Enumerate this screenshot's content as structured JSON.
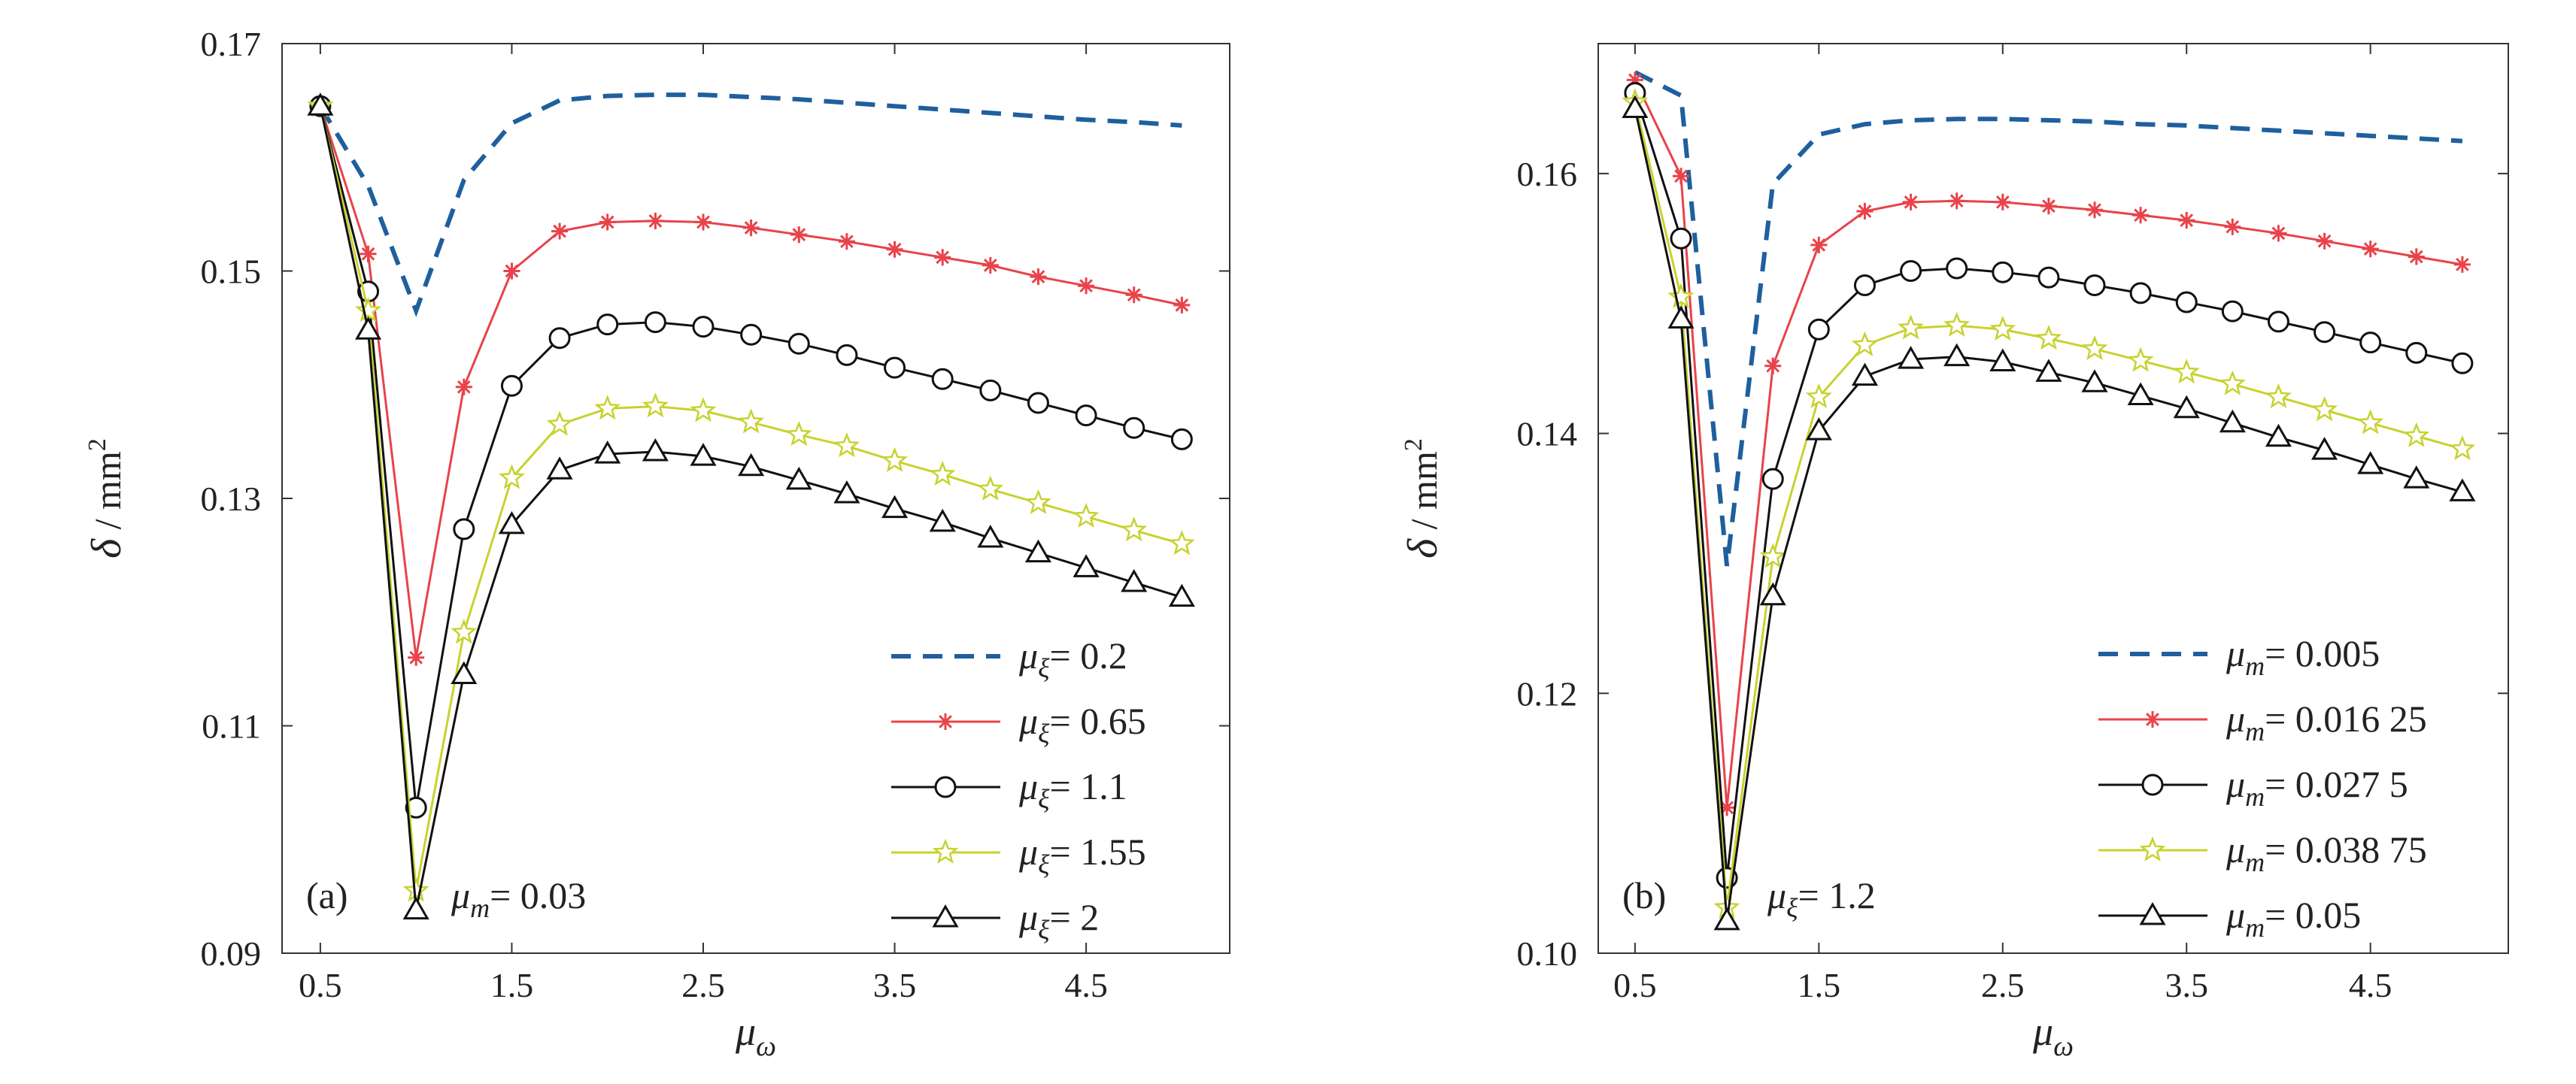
{
  "chart_data": [
    {
      "type": "line",
      "panel_label": "(a)",
      "annotation": {
        "symbol": "μ",
        "sub": "m",
        "text": "= 0.03"
      },
      "xlabel": {
        "symbol": "μ",
        "sub": "ω"
      },
      "ylabel": {
        "symbol": "δ",
        "unit": "/ mm",
        "sup": "2"
      },
      "xlim": [
        0.3,
        5.25
      ],
      "ylim": [
        0.09,
        0.17
      ],
      "xticks": [
        0.5,
        1.5,
        2.5,
        3.5,
        4.5
      ],
      "xtick_labels": [
        "0.5",
        "1.5",
        "2.5",
        "3.5",
        "4.5"
      ],
      "yticks": [
        0.09,
        0.11,
        0.13,
        0.15,
        0.17
      ],
      "ytick_labels": [
        "0.09",
        "0.11",
        "0.13",
        "0.15",
        "0.17"
      ],
      "grid": false,
      "legend_position": "bottom-right",
      "x": [
        0.5,
        0.75,
        1.0,
        1.25,
        1.5,
        1.75,
        2.0,
        2.25,
        2.5,
        2.75,
        3.0,
        3.25,
        3.5,
        3.75,
        4.0,
        4.25,
        4.5,
        4.75,
        5.0
      ],
      "series": [
        {
          "name_symbol": "μ",
          "name_sub": "ξ",
          "name_value": "= 0.2",
          "color": "#1f5f9e",
          "style": "dashed",
          "marker": "none",
          "values": [
            0.1645,
            0.1575,
            0.1465,
            0.158,
            0.163,
            0.165,
            0.1654,
            0.1655,
            0.1655,
            0.1653,
            0.1651,
            0.1648,
            0.1645,
            0.1642,
            0.1639,
            0.1636,
            0.1633,
            0.1631,
            0.1628
          ]
        },
        {
          "name_symbol": "μ",
          "name_sub": "ξ",
          "name_value": "= 0.65",
          "color": "#e8434a",
          "style": "solid",
          "marker": "asterisk",
          "values": [
            0.1645,
            0.1515,
            0.116,
            0.1398,
            0.15,
            0.1535,
            0.1543,
            0.1544,
            0.1543,
            0.1538,
            0.1532,
            0.1526,
            0.1519,
            0.1512,
            0.1505,
            0.1495,
            0.1487,
            0.1479,
            0.147
          ]
        },
        {
          "name_symbol": "μ",
          "name_sub": "ξ",
          "name_value": "= 1.1",
          "color": "#111111",
          "style": "solid",
          "marker": "circle",
          "values": [
            0.1645,
            0.1482,
            0.1028,
            0.1273,
            0.1399,
            0.1441,
            0.1453,
            0.1455,
            0.1451,
            0.1444,
            0.1436,
            0.1426,
            0.1415,
            0.1405,
            0.1395,
            0.1384,
            0.1373,
            0.1362,
            0.1352
          ]
        },
        {
          "name_symbol": "μ",
          "name_sub": "ξ",
          "name_value": "= 1.55",
          "color": "#c8d22e",
          "style": "solid",
          "marker": "star",
          "values": [
            0.1645,
            0.1465,
            0.0955,
            0.1182,
            0.1318,
            0.1365,
            0.1379,
            0.1381,
            0.1377,
            0.1367,
            0.1356,
            0.1346,
            0.1333,
            0.1321,
            0.1308,
            0.1296,
            0.1284,
            0.1272,
            0.126
          ]
        },
        {
          "name_symbol": "μ",
          "name_sub": "ξ",
          "name_value": "= 2",
          "color": "#111111",
          "style": "solid",
          "marker": "triangle",
          "values": [
            0.1645,
            0.1448,
            0.0938,
            0.1145,
            0.1277,
            0.1325,
            0.1339,
            0.1341,
            0.1337,
            0.1328,
            0.1316,
            0.1304,
            0.1291,
            0.1279,
            0.1265,
            0.1252,
            0.1239,
            0.1226,
            0.1213
          ]
        }
      ]
    },
    {
      "type": "line",
      "panel_label": "(b)",
      "annotation": {
        "symbol": "μ",
        "sub": "ξ",
        "text": "= 1.2"
      },
      "xlabel": {
        "symbol": "μ",
        "sub": "ω"
      },
      "ylabel": {
        "symbol": "δ",
        "unit": "/ mm",
        "sup": "2"
      },
      "xlim": [
        0.3,
        5.25
      ],
      "ylim": [
        0.1,
        0.17
      ],
      "xticks": [
        0.5,
        1.5,
        2.5,
        3.5,
        4.5
      ],
      "xtick_labels": [
        "0.5",
        "1.5",
        "2.5",
        "3.5",
        "4.5"
      ],
      "yticks": [
        0.1,
        0.12,
        0.14,
        0.16
      ],
      "ytick_labels": [
        "0.10",
        "0.12",
        "0.14",
        "0.16"
      ],
      "grid": false,
      "legend_position": "bottom-right",
      "x": [
        0.5,
        0.75,
        1.0,
        1.25,
        1.5,
        1.75,
        2.0,
        2.25,
        2.5,
        2.75,
        3.0,
        3.25,
        3.5,
        3.75,
        4.0,
        4.25,
        4.5,
        4.75,
        5.0
      ],
      "series": [
        {
          "name_symbol": "μ",
          "name_sub": "m",
          "name_value": "= 0.005",
          "color": "#1f5f9e",
          "style": "dashed",
          "marker": "none",
          "values": [
            0.1678,
            0.166,
            0.1298,
            0.1592,
            0.163,
            0.1638,
            0.1641,
            0.1642,
            0.1642,
            0.1641,
            0.164,
            0.1638,
            0.1637,
            0.1635,
            0.1633,
            0.1631,
            0.1629,
            0.1627,
            0.1625
          ]
        },
        {
          "name_symbol": "μ",
          "name_sub": "m",
          "name_value": "= 0.016 25",
          "color": "#e8434a",
          "style": "solid",
          "marker": "asterisk",
          "values": [
            0.1672,
            0.1598,
            0.1112,
            0.1452,
            0.1545,
            0.1571,
            0.1578,
            0.1579,
            0.1578,
            0.1575,
            0.1572,
            0.1568,
            0.1564,
            0.1559,
            0.1554,
            0.1548,
            0.1542,
            0.1536,
            0.153
          ]
        },
        {
          "name_symbol": "μ",
          "name_sub": "m",
          "name_value": "= 0.027 5",
          "color": "#111111",
          "style": "solid",
          "marker": "circle",
          "values": [
            0.1662,
            0.155,
            0.1058,
            0.1365,
            0.148,
            0.1514,
            0.1525,
            0.1527,
            0.1524,
            0.152,
            0.1514,
            0.1508,
            0.1501,
            0.1494,
            0.1486,
            0.1478,
            0.147,
            0.1462,
            0.1454
          ]
        },
        {
          "name_symbol": "μ",
          "name_sub": "m",
          "name_value": "= 0.038 75",
          "color": "#c8d22e",
          "style": "solid",
          "marker": "star",
          "values": [
            0.1655,
            0.1505,
            0.1035,
            0.1305,
            0.1428,
            0.1468,
            0.1481,
            0.1483,
            0.148,
            0.1473,
            0.1465,
            0.1456,
            0.1447,
            0.1438,
            0.1428,
            0.1418,
            0.1408,
            0.1398,
            0.1388
          ]
        },
        {
          "name_symbol": "μ",
          "name_sub": "m",
          "name_value": "= 0.05",
          "color": "#111111",
          "style": "solid",
          "marker": "triangle",
          "values": [
            0.165,
            0.1488,
            0.1025,
            0.1275,
            0.1402,
            0.1444,
            0.1457,
            0.1459,
            0.1455,
            0.1447,
            0.1439,
            0.1429,
            0.1419,
            0.1408,
            0.1397,
            0.1387,
            0.1376,
            0.1365,
            0.1355
          ]
        }
      ]
    }
  ]
}
